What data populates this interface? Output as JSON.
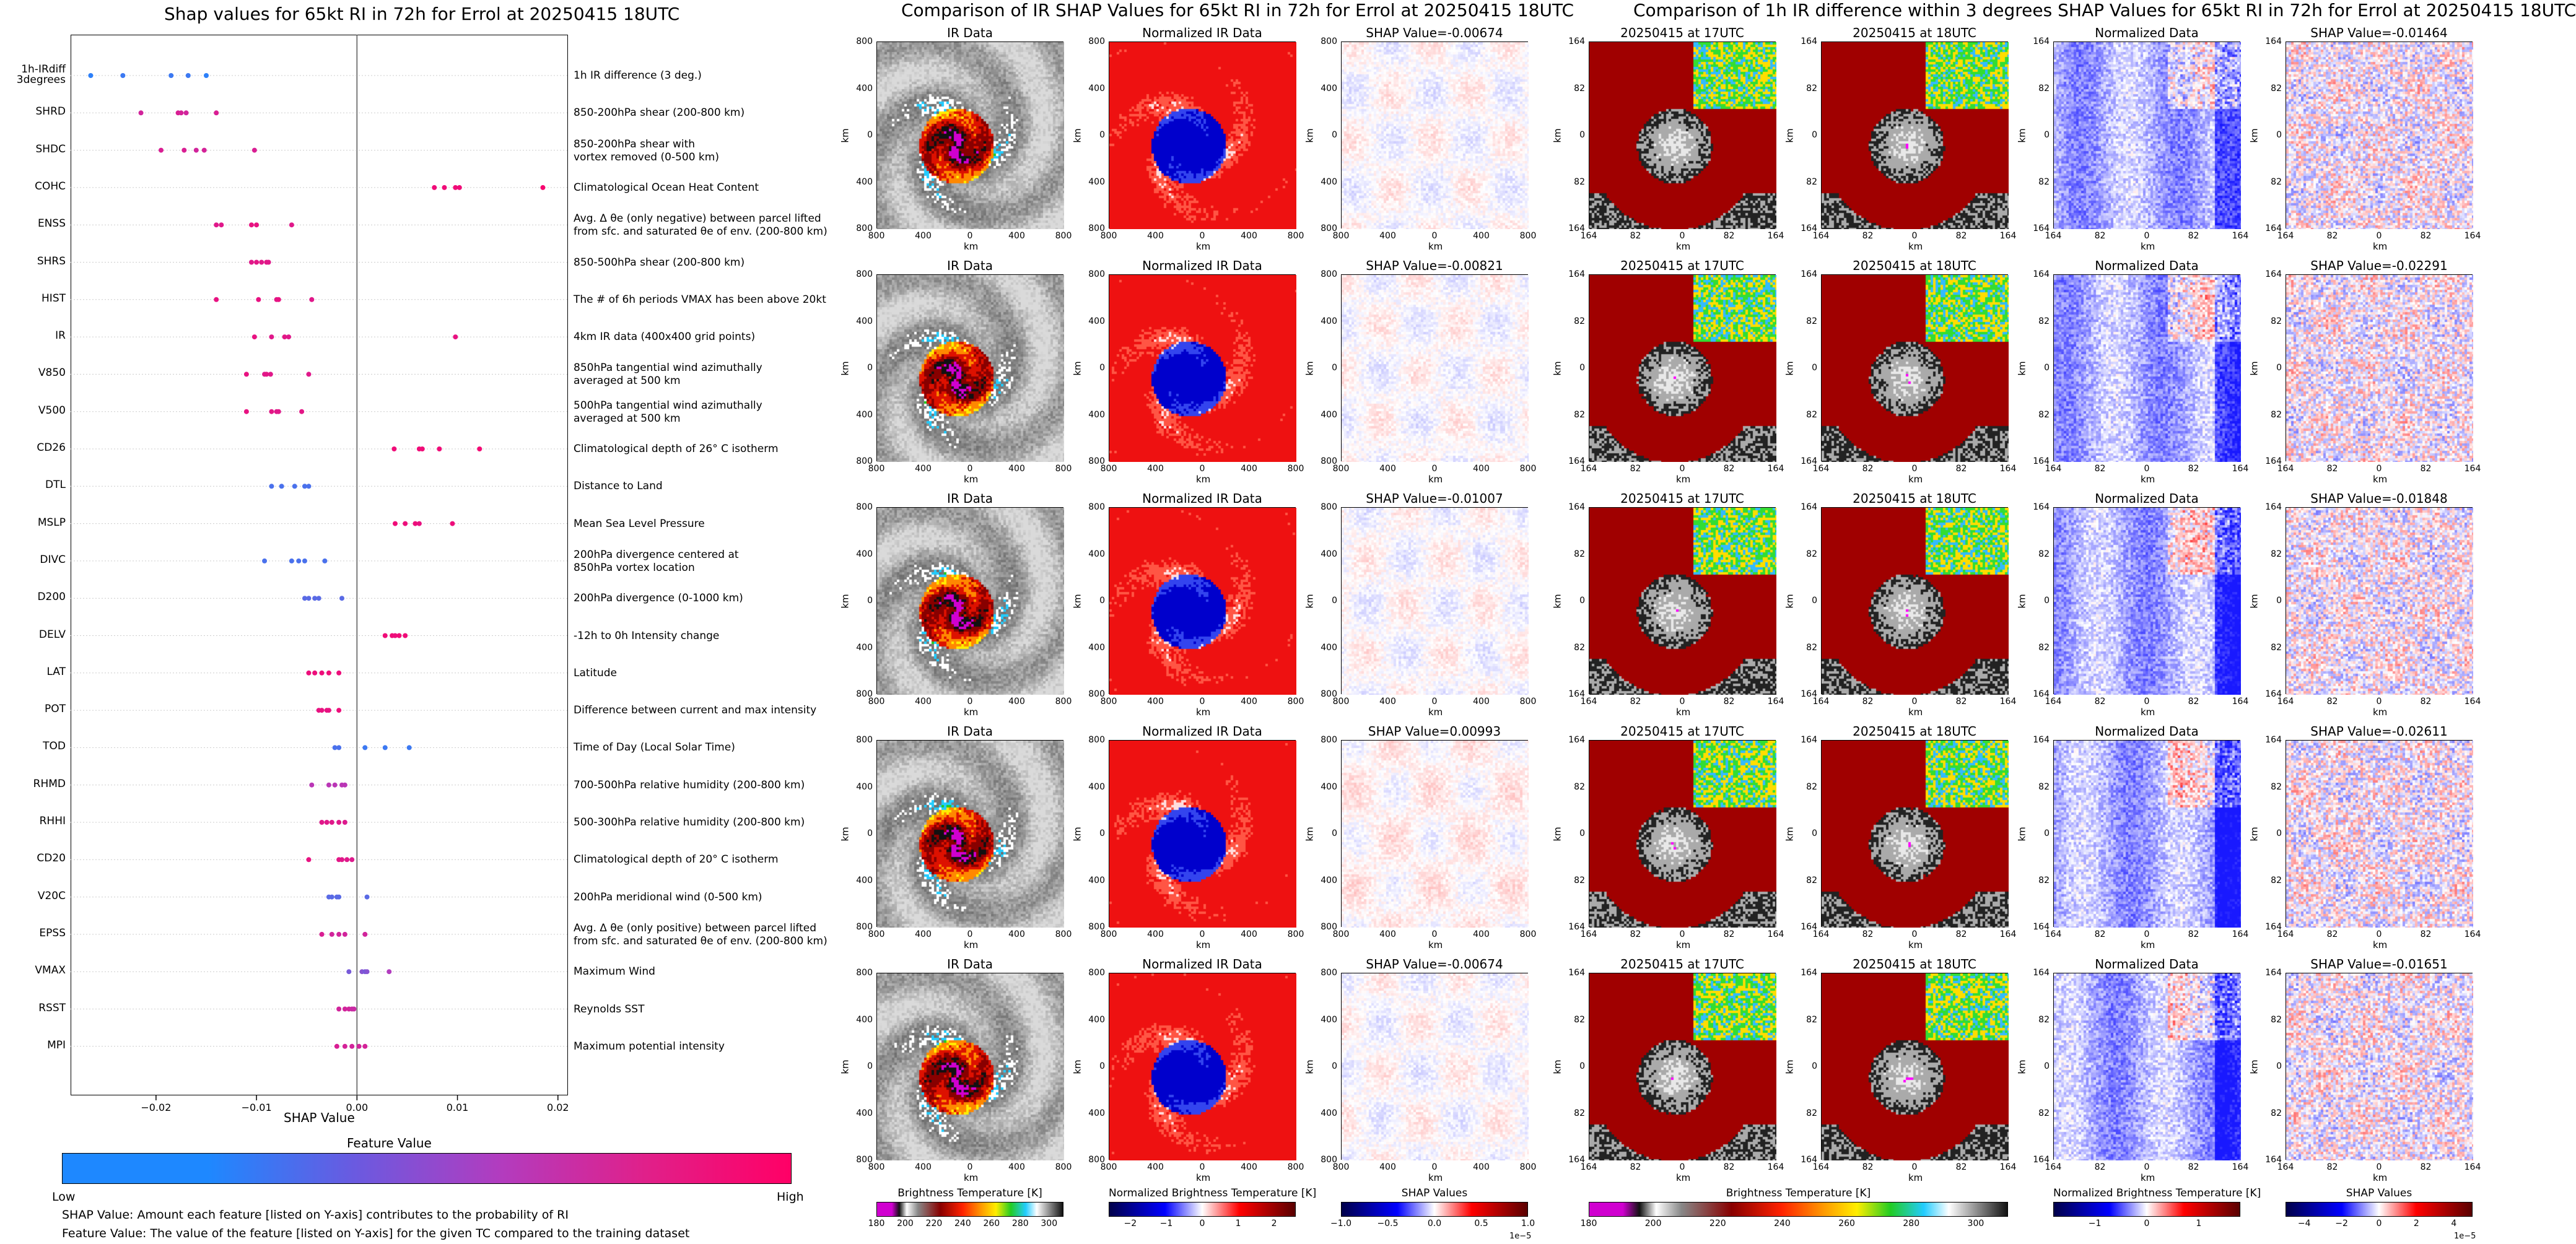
{
  "left_title": "Shap values for 65kt RI in 72h for Errol at 20250415 18UTC",
  "mid_title": "Comparison of IR SHAP Values for 65kt RI in 72h for Errol at 20250415 18UTC",
  "right_title": "Comparison of 1h IR difference within 3 degrees SHAP Values for 65kt RI in 72h for Errol at 20250415 18UTC",
  "chart_data": [
    {
      "type": "scatter",
      "title": "Shap values for 65kt RI in 72h for Errol at 20250415 18UTC",
      "xlabel": "SHAP Value",
      "xlim": [
        -0.0285,
        0.021
      ],
      "xticks": [
        -0.02,
        -0.01,
        0.0,
        0.01,
        0.02
      ],
      "xtick_labels": [
        "−0.02",
        "−0.01",
        "0.00",
        "0.01",
        "0.02"
      ],
      "colorbar": {
        "title": "Feature Value",
        "low_label": "Low",
        "high_label": "High",
        "low_color": "#1e88ff",
        "high_color": "#ff0066"
      },
      "features": [
        {
          "name": "1h-IRdiff\n3degrees",
          "description": "1h IR difference (3 deg.)",
          "points": [
            [
              -0.0265,
              0.05
            ],
            [
              -0.0233,
              0.1
            ],
            [
              -0.0185,
              0.1
            ],
            [
              -0.0168,
              0.1
            ],
            [
              -0.015,
              0.05
            ]
          ]
        },
        {
          "name": "SHRD",
          "description": "850-200hPa shear (200-800 km)",
          "points": [
            [
              -0.0215,
              0.7
            ],
            [
              -0.0178,
              0.75
            ],
            [
              -0.0175,
              0.72
            ],
            [
              -0.017,
              0.7
            ],
            [
              -0.014,
              0.75
            ]
          ]
        },
        {
          "name": "SHDC",
          "description": "850-200hPa shear with\nvortex removed (0-500 km)",
          "points": [
            [
              -0.0195,
              0.75
            ],
            [
              -0.0172,
              0.75
            ],
            [
              -0.016,
              0.7
            ],
            [
              -0.0152,
              0.72
            ],
            [
              -0.0102,
              0.75
            ]
          ]
        },
        {
          "name": "COHC",
          "description": "Climatological Ocean Heat Content",
          "points": [
            [
              0.0077,
              0.9
            ],
            [
              0.0087,
              0.9
            ],
            [
              0.0098,
              0.9
            ],
            [
              0.0102,
              0.9
            ],
            [
              0.0185,
              0.95
            ]
          ]
        },
        {
          "name": "ENSS",
          "description": "Avg. Δ θe (only negative) between parcel lifted\nfrom sfc. and saturated θe of env. (200-800 km)",
          "points": [
            [
              -0.014,
              0.8
            ],
            [
              -0.0135,
              0.8
            ],
            [
              -0.0105,
              0.85
            ],
            [
              -0.01,
              0.85
            ],
            [
              -0.0065,
              0.8
            ]
          ]
        },
        {
          "name": "SHRS",
          "description": "850-500hPa shear (200-800 km)",
          "points": [
            [
              -0.0105,
              0.8
            ],
            [
              -0.01,
              0.82
            ],
            [
              -0.0095,
              0.8
            ],
            [
              -0.009,
              0.82
            ],
            [
              -0.0088,
              0.8
            ]
          ]
        },
        {
          "name": "HIST",
          "description": "The # of 6h periods VMAX has been above 20kt",
          "points": [
            [
              -0.014,
              0.85
            ],
            [
              -0.0098,
              0.85
            ],
            [
              -0.008,
              0.82
            ],
            [
              -0.0078,
              0.85
            ],
            [
              -0.0045,
              0.8
            ]
          ]
        },
        {
          "name": "IR",
          "description": "4km IR data (400x400 grid points)",
          "points": [
            [
              -0.0102,
              0.85
            ],
            [
              -0.0085,
              0.8
            ],
            [
              -0.0072,
              0.82
            ],
            [
              -0.0068,
              0.8
            ],
            [
              0.0098,
              0.85
            ]
          ]
        },
        {
          "name": "V850",
          "description": "850hPa tangential wind azimuthally\naveraged at 500 km",
          "points": [
            [
              -0.011,
              0.85
            ],
            [
              -0.0092,
              0.8
            ],
            [
              -0.009,
              0.82
            ],
            [
              -0.0086,
              0.8
            ],
            [
              -0.0048,
              0.8
            ]
          ]
        },
        {
          "name": "V500",
          "description": "500hPa tangential wind azimuthally\naveraged at 500 km",
          "points": [
            [
              -0.011,
              0.85
            ],
            [
              -0.0085,
              0.82
            ],
            [
              -0.008,
              0.8
            ],
            [
              -0.0078,
              0.8
            ],
            [
              -0.0055,
              0.82
            ]
          ]
        },
        {
          "name": "CD26",
          "description": "Climatological depth of 26° C isotherm",
          "points": [
            [
              0.0037,
              0.9
            ],
            [
              0.0062,
              0.9
            ],
            [
              0.0065,
              0.9
            ],
            [
              0.0082,
              0.9
            ],
            [
              0.0122,
              0.92
            ]
          ]
        },
        {
          "name": "DTL",
          "description": "Distance to Land",
          "points": [
            [
              -0.0085,
              0.15
            ],
            [
              -0.0075,
              0.15
            ],
            [
              -0.0062,
              0.15
            ],
            [
              -0.0052,
              0.15
            ],
            [
              -0.0048,
              0.15
            ]
          ]
        },
        {
          "name": "MSLP",
          "description": "Mean Sea Level Pressure",
          "points": [
            [
              0.0038,
              0.9
            ],
            [
              0.0048,
              0.88
            ],
            [
              0.0058,
              0.88
            ],
            [
              0.0062,
              0.85
            ],
            [
              0.0095,
              0.88
            ]
          ]
        },
        {
          "name": "DIVC",
          "description": "200hPa divergence centered at\n850hPa vortex location",
          "points": [
            [
              -0.0092,
              0.15
            ],
            [
              -0.0065,
              0.15
            ],
            [
              -0.0058,
              0.15
            ],
            [
              -0.0052,
              0.15
            ],
            [
              -0.0032,
              0.15
            ]
          ]
        },
        {
          "name": "D200",
          "description": "200hPa divergence (0-1000 km)",
          "points": [
            [
              -0.0052,
              0.2
            ],
            [
              -0.0048,
              0.2
            ],
            [
              -0.0042,
              0.2
            ],
            [
              -0.0038,
              0.2
            ],
            [
              -0.0015,
              0.2
            ]
          ]
        },
        {
          "name": "DELV",
          "description": "-12h to 0h Intensity change",
          "points": [
            [
              0.0028,
              0.9
            ],
            [
              0.0035,
              0.9
            ],
            [
              0.0038,
              0.88
            ],
            [
              0.0042,
              0.9
            ],
            [
              0.0048,
              0.9
            ]
          ]
        },
        {
          "name": "LAT",
          "description": "Latitude",
          "points": [
            [
              -0.0048,
              0.88
            ],
            [
              -0.0042,
              0.88
            ],
            [
              -0.0035,
              0.88
            ],
            [
              -0.0028,
              0.9
            ],
            [
              -0.0018,
              0.88
            ]
          ]
        },
        {
          "name": "POT",
          "description": "Difference between current and max intensity",
          "points": [
            [
              -0.0038,
              0.85
            ],
            [
              -0.0035,
              0.85
            ],
            [
              -0.003,
              0.85
            ],
            [
              -0.0028,
              0.85
            ],
            [
              -0.0018,
              0.88
            ]
          ]
        },
        {
          "name": "TOD",
          "description": "Time of Day (Local Solar Time)",
          "points": [
            [
              -0.0022,
              0.15
            ],
            [
              -0.0018,
              0.15
            ],
            [
              0.0008,
              0.1
            ],
            [
              0.0028,
              0.1
            ],
            [
              0.0052,
              0.1
            ]
          ]
        },
        {
          "name": "RHMD",
          "description": "700-500hPa relative humidity (200-800 km)",
          "points": [
            [
              -0.0045,
              0.55
            ],
            [
              -0.0028,
              0.55
            ],
            [
              -0.0022,
              0.55
            ],
            [
              -0.0015,
              0.55
            ],
            [
              -0.0012,
              0.55
            ]
          ]
        },
        {
          "name": "RHHI",
          "description": "500-300hPa relative humidity (200-800 km)",
          "points": [
            [
              -0.0035,
              0.8
            ],
            [
              -0.003,
              0.8
            ],
            [
              -0.0025,
              0.8
            ],
            [
              -0.0018,
              0.8
            ],
            [
              -0.0012,
              0.78
            ]
          ]
        },
        {
          "name": "CD20",
          "description": "Climatological depth of 20° C isotherm",
          "points": [
            [
              -0.0048,
              0.85
            ],
            [
              -0.0018,
              0.82
            ],
            [
              -0.0015,
              0.8
            ],
            [
              -0.001,
              0.8
            ],
            [
              -0.0005,
              0.78
            ]
          ]
        },
        {
          "name": "V20C",
          "description": "200hPa meridional wind (0-500 km)",
          "points": [
            [
              -0.0028,
              0.2
            ],
            [
              -0.0025,
              0.2
            ],
            [
              -0.002,
              0.2
            ],
            [
              -0.0018,
              0.2
            ],
            [
              0.001,
              0.2
            ]
          ]
        },
        {
          "name": "EPSS",
          "description": "Avg. Δ θe (only positive) between parcel lifted\nfrom sfc. and saturated θe of env. (200-800 km)",
          "points": [
            [
              -0.0035,
              0.75
            ],
            [
              -0.0025,
              0.7
            ],
            [
              -0.0018,
              0.7
            ],
            [
              -0.0012,
              0.7
            ],
            [
              0.0008,
              0.7
            ]
          ]
        },
        {
          "name": "VMAX",
          "description": "Maximum Wind",
          "points": [
            [
              -0.0008,
              0.3
            ],
            [
              0.0005,
              0.35
            ],
            [
              0.0008,
              0.3
            ],
            [
              0.001,
              0.35
            ],
            [
              0.0032,
              0.5
            ]
          ]
        },
        {
          "name": "RSST",
          "description": "Reynolds SST",
          "points": [
            [
              -0.0018,
              0.7
            ],
            [
              -0.0012,
              0.7
            ],
            [
              -0.0008,
              0.7
            ],
            [
              -0.0005,
              0.65
            ],
            [
              -0.0003,
              0.65
            ]
          ]
        },
        {
          "name": "MPI",
          "description": "Maximum potential intensity",
          "points": [
            [
              -0.002,
              0.75
            ],
            [
              -0.0012,
              0.72
            ],
            [
              -0.0005,
              0.7
            ],
            [
              0.0002,
              0.7
            ],
            [
              0.0008,
              0.72
            ]
          ]
        }
      ]
    },
    {
      "type": "heatmap",
      "title": "Comparison of IR SHAP Values for 65kt RI in 72h for Errol at 20250415 18UTC",
      "column_titles": [
        "IR Data",
        "Normalized IR Data"
      ],
      "shap_titles": [
        "SHAP Value=-0.00674",
        "SHAP Value=-0.00821",
        "SHAP Value=-0.01007",
        "SHAP Value=0.00993",
        "SHAP Value=-0.00674"
      ],
      "shap_values": [
        -0.00674,
        -0.00821,
        -0.01007,
        0.00993,
        -0.00674
      ],
      "xlabel": "km",
      "ylabel": "km",
      "xtick_labels": [
        "800",
        "400",
        "0",
        "400",
        "800"
      ],
      "ytick_labels": [
        "800",
        "400",
        "0",
        "400",
        "800"
      ],
      "colorbars": [
        {
          "title": "Brightness Temperature [K]",
          "ticks": [
            "180",
            "200",
            "220",
            "240",
            "260",
            "280",
            "300"
          ],
          "range": [
            180,
            310
          ]
        },
        {
          "title": "Normalized Brightness Temperature [K]",
          "ticks": [
            "−2",
            "−1",
            "0",
            "1",
            "2"
          ],
          "range": [
            -2.6,
            2.6
          ]
        },
        {
          "title": "SHAP Values",
          "ticks": [
            "−1.0",
            "−0.5",
            "0.0",
            "0.5",
            "1.0"
          ],
          "range": [
            -1.0,
            1.0
          ],
          "offset_label": "1e−5"
        }
      ]
    },
    {
      "type": "heatmap",
      "title": "Comparison of 1h IR difference within 3 degrees SHAP Values for 65kt RI in 72h for Errol at 20250415 18UTC",
      "column_titles": [
        "20250415 at 17UTC",
        "20250415 at 18UTC",
        "Normalized Data"
      ],
      "shap_titles": [
        "SHAP Value=-0.01464",
        "SHAP Value=-0.02291",
        "SHAP Value=-0.01848",
        "SHAP Value=-0.02611",
        "SHAP Value=-0.01651"
      ],
      "shap_values": [
        -0.01464,
        -0.02291,
        -0.01848,
        -0.02611,
        -0.01651
      ],
      "xlabel": "km",
      "ylabel": "km",
      "xtick_labels": [
        "164",
        "82",
        "0",
        "82",
        "164"
      ],
      "ytick_labels": [
        "164",
        "82",
        "0",
        "82",
        "164"
      ],
      "colorbars": [
        {
          "title": "Brightness Temperature [K]",
          "ticks": [
            "180",
            "200",
            "220",
            "240",
            "260",
            "280",
            "300"
          ],
          "range": [
            180,
            310
          ]
        },
        {
          "title": "Normalized Brightness Temperature [K]",
          "ticks": [
            "−1",
            "0",
            "1"
          ],
          "range": [
            -1.8,
            1.8
          ]
        },
        {
          "title": "SHAP Values",
          "ticks": [
            "−4",
            "−2",
            "0",
            "2",
            "4"
          ],
          "range": [
            -5,
            5
          ],
          "offset_label": "1e−5"
        }
      ]
    }
  ],
  "notes": {
    "shap_value": "SHAP Value: Amount each feature [listed on Y-axis] contributes to the probability of RI",
    "feature_value": "Feature Value: The value of the feature [listed on Y-axis] for the given TC compared to the training dataset"
  }
}
